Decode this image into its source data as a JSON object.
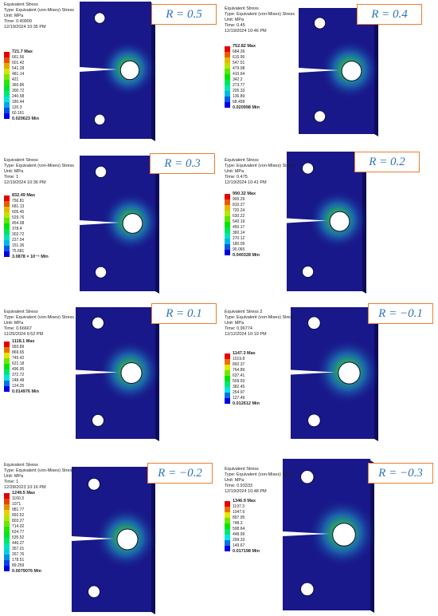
{
  "panels": [
    {
      "r_label": "R = 0.5",
      "header": [
        "Equivalent Stress",
        "Type: Equivalent (von-Mises) Stress",
        "Unit: MPa",
        "Time: 0.40909",
        "12/19/2024 10:35 PM"
      ],
      "legend": [
        "721.7 Max",
        "661.56",
        "601.42",
        "541.28",
        "481.14",
        "421",
        "360.86",
        "300.72",
        "240.58",
        "180.44",
        "120.3",
        "60.161",
        "0.020623 Min"
      ]
    },
    {
      "r_label": "R = 0.4",
      "header": [
        "Equivalent Stress",
        "Type: Equivalent (von-Mises) Stress",
        "Unit: MPa",
        "Time: 0.45",
        "12/19/2024 10:46 PM"
      ],
      "legend": [
        "752.82 Max",
        "684.39",
        "615.95",
        "547.51",
        "479.08",
        "410.64",
        "342.2",
        "273.77",
        "205.33",
        "136.89",
        "68.458",
        "0.020998 Min"
      ]
    },
    {
      "r_label": "R = 0.3",
      "header": [
        "Equivalent Stress",
        "Type: Equivalent (von-Mises) Stress",
        "Unit: MPa",
        "Time: 1",
        "12/19/2024 10:36 PM"
      ],
      "legend": [
        "832.49 Max",
        "756.81",
        "681.13",
        "605.45",
        "529.76",
        "454.08",
        "378.4",
        "302.72",
        "227.04",
        "151.36",
        "75.681",
        "3.0878 × 10⁻⁵ Min"
      ]
    },
    {
      "r_label": "R = 0.2",
      "header": [
        "Equivalent Stress",
        "Type: Equivalent (von-Mises) Stress",
        "Unit: MPa",
        "Time: 0.475",
        "12/19/2024 10:41 PM"
      ],
      "legend": [
        "990.32 Max",
        "900.29",
        "810.27",
        "720.24",
        "630.22",
        "540.19",
        "450.17",
        "360.14",
        "270.12",
        "180.09",
        "90.065",
        "0.040328 Min"
      ]
    },
    {
      "r_label": "R = 0.1",
      "header": [
        "Equivalent Stress",
        "Type: Equivalent (von-Mises) Stress",
        "Unit: MPa",
        "Time: 0.66667",
        "11/29/2024 9:52 PM"
      ],
      "legend": [
        "1118.1 Max",
        "993.89",
        "869.65",
        "745.42",
        "621.18",
        "496.95",
        "372.72",
        "248.48",
        "124.25",
        "0.014976 Min"
      ]
    },
    {
      "r_label": "R = −0.1",
      "header": [
        "Equivalent Stress 2",
        "Type: Equivalent (von-Mises) Stress",
        "Unit: MPa",
        "Time: 0.96774",
        "12/12/2024 10:19 PM"
      ],
      "legend": [
        "1147.3 Max",
        "1019.8",
        "892.37",
        "764.89",
        "637.41",
        "509.93",
        "382.45",
        "254.97",
        "127.49",
        "0.012612 Min"
      ]
    },
    {
      "r_label": "R = −0.2",
      "header": [
        "Equivalent Stress",
        "Type: Equivalent (von-Mises) Stress",
        "Unit: MPa",
        "Time: 1",
        "12/28/2023 10:16 PM"
      ],
      "legend": [
        "1249.5 Max",
        "1160.3",
        "1071",
        "981.77",
        "892.52",
        "803.27",
        "714.02",
        "624.77",
        "535.52",
        "446.27",
        "357.01",
        "267.76",
        "178.51",
        "89.259",
        "0.0079076 Min"
      ]
    },
    {
      "r_label": "R = −0.3",
      "header": [
        "Equivalent Stress",
        "Type: Equivalent (von-Mises) Stres",
        "Unit: MPa",
        "Time: 0.93333",
        "12/19/2024 10:48 PM"
      ],
      "legend": [
        "1346.9 Max",
        "1197.3",
        "1047.6",
        "897.95",
        "748.3",
        "598.64",
        "448.99",
        "299.33",
        "149.67",
        "0.017198 Min"
      ]
    }
  ]
}
